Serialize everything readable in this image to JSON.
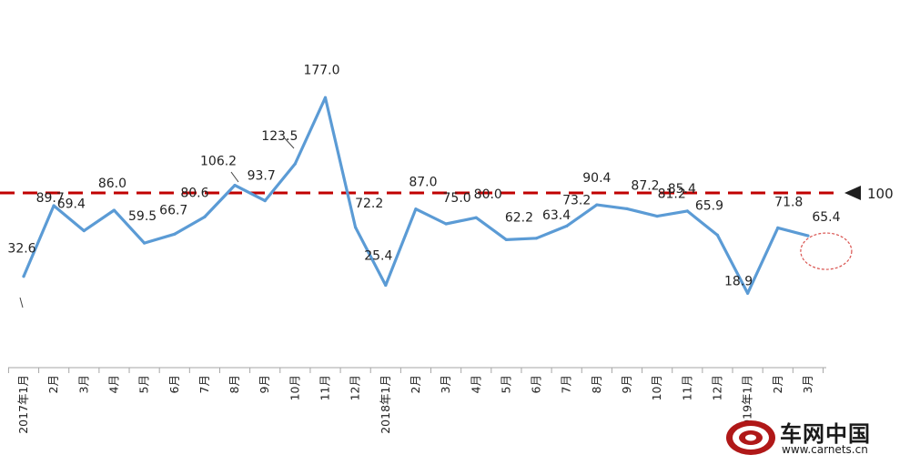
{
  "chart_data": {
    "type": "line",
    "title": "",
    "xlabel": "",
    "ylabel": "",
    "categories": [
      "2017年1月",
      "2月",
      "3月",
      "4月",
      "5月",
      "6月",
      "7月",
      "8月",
      "9月",
      "10月",
      "11月",
      "12月",
      "2018年1月",
      "2月",
      "3月",
      "4月",
      "5月",
      "6月",
      "7月",
      "8月",
      "9月",
      "10月",
      "11月",
      "12月",
      "2019年1月",
      "2月",
      "3月"
    ],
    "series": [
      {
        "name": "",
        "values": [
          32.6,
          89.7,
          69.4,
          86.0,
          59.5,
          66.7,
          80.6,
          106.2,
          93.7,
          123.5,
          177.0,
          72.2,
          25.4,
          87.0,
          75.0,
          80.0,
          62.2,
          63.4,
          73.2,
          90.4,
          87.2,
          81.2,
          85.4,
          65.9,
          18.9,
          71.8,
          65.4
        ],
        "labels": [
          "32.6",
          "89.7",
          "69.4",
          "86.0",
          "59.5",
          "66.7",
          "80.6",
          "106.2",
          "93.7",
          "123.5",
          "177.0",
          "72.2",
          "25.4",
          "87.0",
          "75.0",
          "80.0",
          "62.2",
          "63.4",
          "73.2",
          "90.4",
          "87.2",
          "81.2",
          "85.4",
          "65.9",
          "18.9",
          "71.8",
          "65.4"
        ],
        "color": "#5B9BD5"
      }
    ],
    "reference_line": {
      "value": 100,
      "label": "100",
      "color": "#C00000",
      "style": "dashed"
    },
    "highlight_last_point": true,
    "highlight_color": "#D9534F",
    "ylim": [
      0,
      200
    ],
    "grid": false,
    "legend": "none"
  },
  "watermark": {
    "site_name": "车网中国",
    "url": "www.carnets.cn"
  }
}
